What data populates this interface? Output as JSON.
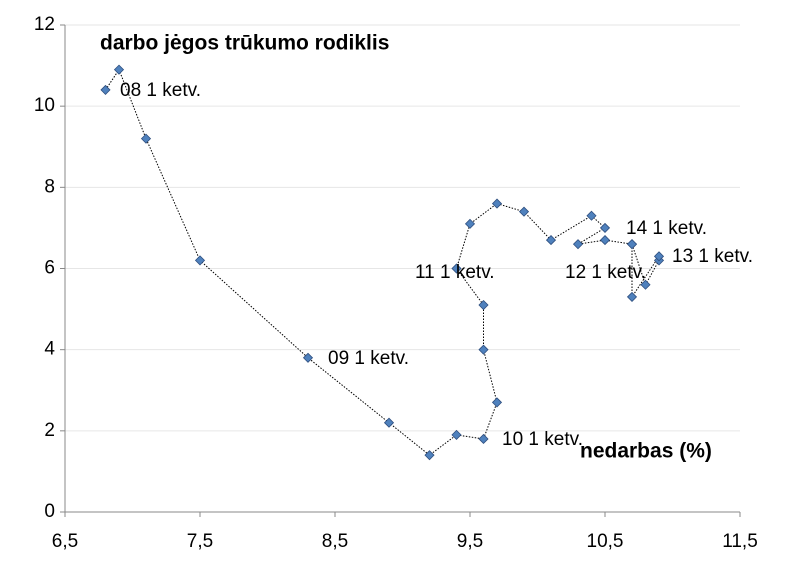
{
  "chart_data": {
    "type": "scatter",
    "title": "darbo jėgos trūkumo rodiklis",
    "x_label": "nedarbas (%)",
    "series": [
      {
        "color": "#4f81bd",
        "connected": true,
        "x": [
          6.8,
          6.9,
          7.1,
          7.5,
          8.3,
          8.9,
          9.2,
          9.4,
          9.6,
          9.7,
          9.6,
          9.6,
          9.4,
          9.5,
          9.7,
          9.9,
          10.1,
          10.4,
          10.5,
          10.3,
          10.5,
          10.7,
          10.8,
          10.9,
          10.9,
          10.7,
          10.7
        ],
        "values": [
          10.4,
          10.9,
          9.2,
          6.2,
          3.8,
          2.2,
          1.4,
          1.9,
          1.8,
          2.7,
          4.0,
          5.1,
          6.0,
          7.1,
          7.6,
          7.4,
          6.7,
          7.3,
          7.0,
          6.6,
          6.7,
          6.6,
          5.6,
          6.2,
          6.3,
          5.3,
          6.6
        ]
      }
    ],
    "annotations": [
      "08 1 ketv.",
      "09 1 ketv.",
      "10 1 ketv.",
      "11 1 ketv.",
      "12 1 ketv.",
      "13 1 ketv.",
      "14 1 ketv."
    ],
    "xlim": [
      6.5,
      11.5
    ],
    "xticks": [
      {
        "value": 6.5,
        "label": "6,5"
      },
      {
        "value": 7.5,
        "label": "7,5"
      },
      {
        "value": 8.5,
        "label": "8,5"
      },
      {
        "value": 9.5,
        "label": "9,5"
      },
      {
        "value": 10.5,
        "label": "10,5"
      },
      {
        "value": 11.5,
        "label": "11,5"
      }
    ],
    "ylim": [
      0,
      12
    ],
    "yticks": [
      0,
      2,
      4,
      6,
      8,
      10,
      12
    ],
    "grid": true
  }
}
